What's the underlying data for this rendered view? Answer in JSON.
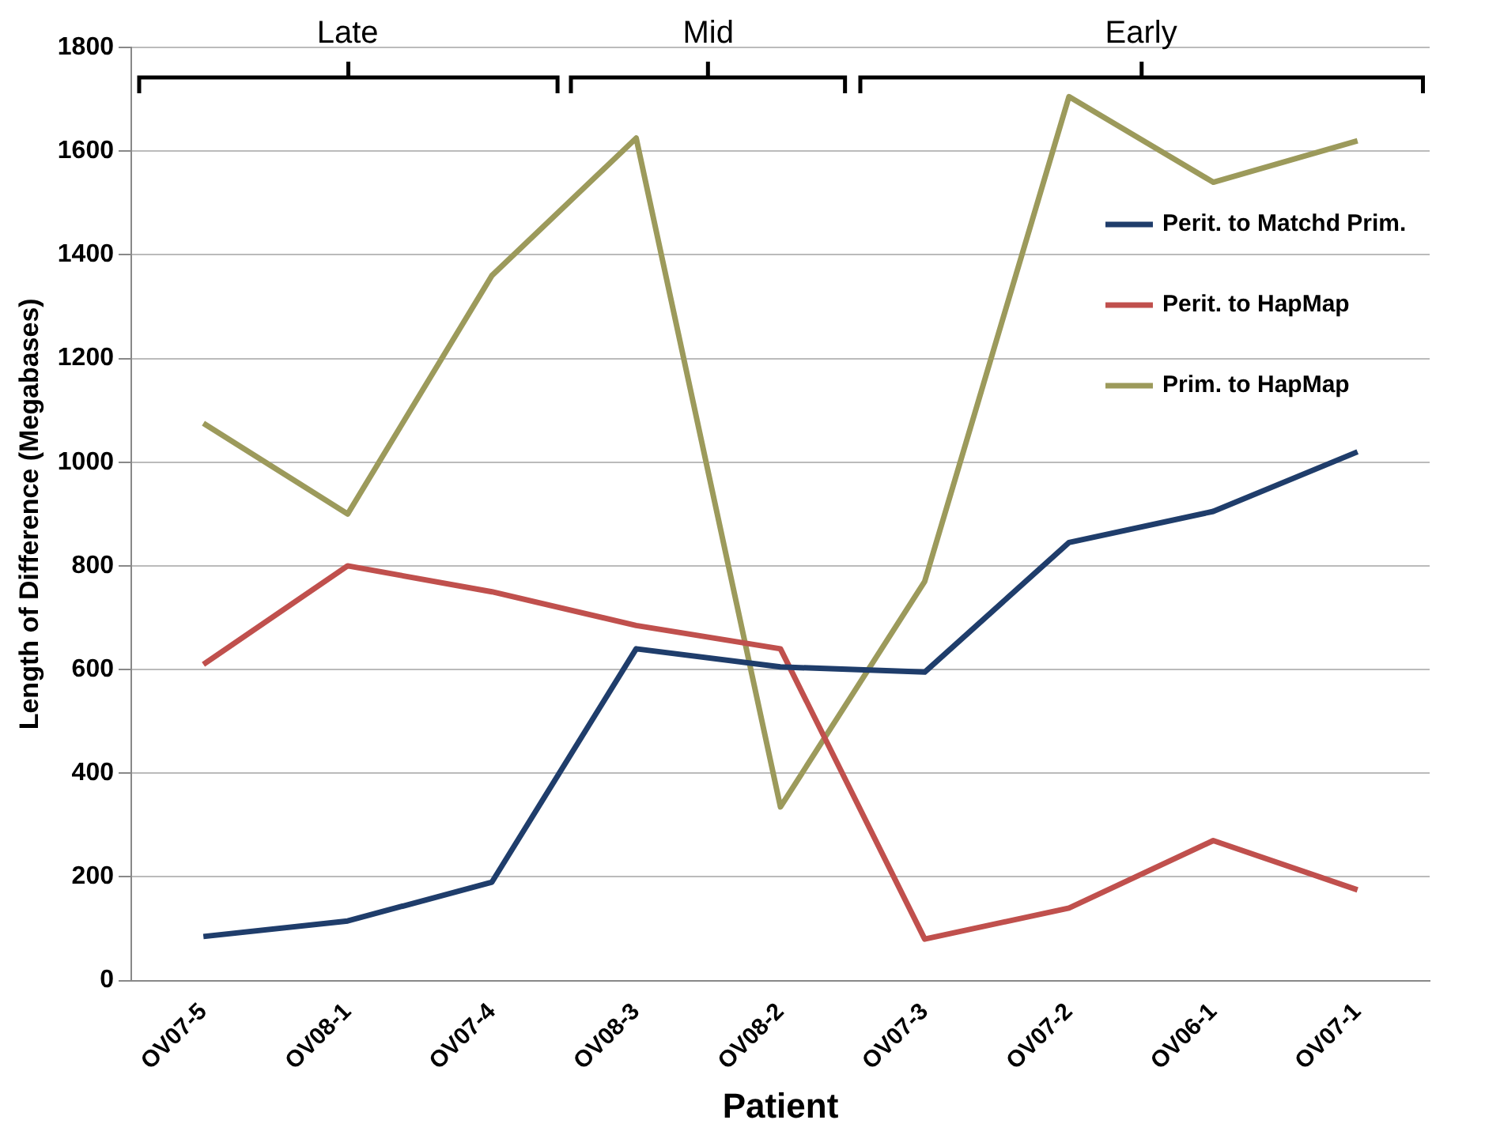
{
  "chart_data": {
    "type": "line",
    "xlabel": "Patient",
    "ylabel": "Length of Difference (Megabases)",
    "categories": [
      "OV07-5",
      "OV08-1",
      "OV07-4",
      "OV08-3",
      "OV08-2",
      "OV07-3",
      "OV07-2",
      "OV06-1",
      "OV07-1"
    ],
    "series": [
      {
        "name": "Perit. to Matchd Prim.",
        "color": "#1f3d6b",
        "values": [
          85,
          115,
          190,
          640,
          605,
          595,
          845,
          905,
          1020
        ]
      },
      {
        "name": "Perit. to HapMap",
        "color": "#c0504d",
        "values": [
          610,
          800,
          750,
          685,
          640,
          80,
          140,
          270,
          175
        ]
      },
      {
        "name": "Prim. to HapMap",
        "color": "#9c9a5b",
        "values": [
          1075,
          900,
          1360,
          1625,
          335,
          770,
          1705,
          1540,
          1620
        ]
      }
    ],
    "ylim": [
      0,
      1800
    ],
    "yticks": [
      0,
      200,
      400,
      600,
      800,
      1000,
      1200,
      1400,
      1600,
      1800
    ],
    "grid": "y",
    "legend": "right",
    "marker": "none",
    "line_style": "solid",
    "annotations": [
      "Late",
      "Mid",
      "Early"
    ]
  }
}
